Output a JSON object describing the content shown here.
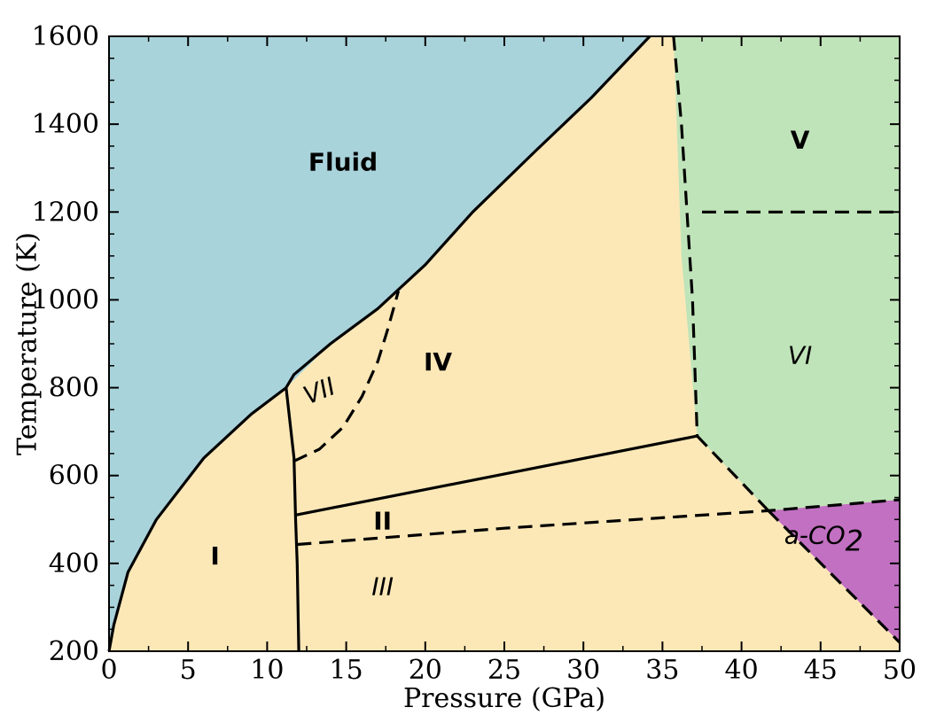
{
  "chart_data": {
    "type": "area",
    "title": "",
    "xlabel": "Pressure (GPa)",
    "ylabel": "Temperature (K)",
    "xlim": [
      0,
      50
    ],
    "ylim": [
      200,
      1600
    ],
    "x_ticks": [
      0,
      5,
      10,
      15,
      20,
      25,
      30,
      35,
      40,
      45,
      50
    ],
    "y_ticks": [
      200,
      400,
      600,
      800,
      1000,
      1200,
      1400,
      1600
    ],
    "x_tick_labels": [
      "0",
      "5",
      "10",
      "15",
      "20",
      "25",
      "30",
      "35",
      "40",
      "45",
      "50"
    ],
    "y_tick_labels": [
      "200",
      "400",
      "600",
      "800",
      "1000",
      "1200",
      "1400",
      "1600"
    ],
    "grid": false,
    "colors": {
      "fluid": "#a9d3db",
      "solid": "#fce8b7",
      "high_pressure": "#c0e4b9",
      "amorphous": "#c270c2",
      "corner": "#a8a8a8"
    },
    "regions": [
      {
        "label": "Fluid",
        "style": "bold",
        "x": 14.8,
        "y": 1315,
        "color_key": "fluid",
        "polygon": [
          [
            0,
            200
          ],
          [
            0.3,
            260
          ],
          [
            1.2,
            380
          ],
          [
            3,
            500
          ],
          [
            6,
            640
          ],
          [
            9,
            740
          ],
          [
            11.2,
            800
          ],
          [
            14,
            900
          ],
          [
            17,
            980
          ],
          [
            20,
            1080
          ],
          [
            23,
            1200
          ],
          [
            27,
            1340
          ],
          [
            30.5,
            1460
          ],
          [
            34.2,
            1600
          ],
          [
            0,
            1600
          ]
        ]
      },
      {
        "label": "V",
        "style": "bold",
        "x": 43.7,
        "y": 1365,
        "color_key": "high_pressure",
        "polygon": [
          [
            35.7,
            1600
          ],
          [
            50,
            1600
          ],
          [
            50,
            545
          ],
          [
            41.7,
            520
          ],
          [
            37.2,
            690
          ],
          [
            36.2,
            1100
          ]
        ]
      },
      {
        "label": "VI",
        "style": "italic",
        "x": 43.7,
        "y": 875,
        "color_key": "high_pressure"
      },
      {
        "label": "IV",
        "style": "bold",
        "x": 20.8,
        "y": 860,
        "color_key": "solid"
      },
      {
        "label": "VII",
        "style": "italic",
        "x": 13.5,
        "y": 795,
        "color_key": "solid"
      },
      {
        "label": "II",
        "style": "bold",
        "x": 17.3,
        "y": 498,
        "color_key": "solid"
      },
      {
        "label": "I",
        "style": "bold",
        "x": 6.7,
        "y": 418,
        "color_key": "solid"
      },
      {
        "label": "III",
        "style": "italic",
        "x": 17.3,
        "y": 348,
        "color_key": "solid"
      },
      {
        "label": "a-CO2",
        "label_main": "a-CO",
        "label_sub": "2",
        "style": "italic",
        "x": 45.2,
        "y": 465,
        "color_key": "amorphous",
        "polygon": [
          [
            41.7,
            520
          ],
          [
            50,
            545
          ],
          [
            50,
            220
          ]
        ]
      }
    ],
    "boundaries": [
      {
        "name": "melting-curve",
        "style": "solid",
        "points": [
          [
            0,
            200
          ],
          [
            0.3,
            260
          ],
          [
            1.2,
            380
          ],
          [
            3,
            500
          ],
          [
            6,
            640
          ],
          [
            9,
            740
          ],
          [
            11.2,
            800
          ],
          [
            11.7,
            830
          ],
          [
            14,
            900
          ],
          [
            17,
            980
          ],
          [
            20,
            1080
          ],
          [
            23,
            1200
          ],
          [
            27,
            1340
          ],
          [
            30.5,
            1460
          ],
          [
            34.2,
            1600
          ]
        ]
      },
      {
        "name": "I-boundary",
        "style": "solid",
        "points": [
          [
            11.2,
            800
          ],
          [
            11.7,
            640
          ],
          [
            11.8,
            500
          ],
          [
            11.9,
            400
          ],
          [
            12,
            200
          ]
        ]
      },
      {
        "name": "IV-II-boundary",
        "style": "solid",
        "points": [
          [
            11.8,
            510
          ],
          [
            37.2,
            690
          ]
        ]
      },
      {
        "name": "VII-boundary",
        "style": "dashed",
        "points": [
          [
            11.7,
            633
          ],
          [
            13.3,
            660
          ],
          [
            14.8,
            710
          ],
          [
            16,
            780
          ],
          [
            17,
            860
          ],
          [
            17.6,
            930
          ],
          [
            18.3,
            1020
          ]
        ]
      },
      {
        "name": "II-III-boundary",
        "style": "dashed",
        "points": [
          [
            11.9,
            443
          ],
          [
            25,
            480
          ],
          [
            41.7,
            520
          ],
          [
            50,
            545
          ]
        ]
      },
      {
        "name": "IV-VI-boundary",
        "style": "dashed",
        "points": [
          [
            35.7,
            1600
          ],
          [
            36.2,
            1400
          ],
          [
            36.9,
            1000
          ],
          [
            37.2,
            690
          ]
        ]
      },
      {
        "name": "V-VI-boundary",
        "style": "dashed",
        "points": [
          [
            37.5,
            1200
          ],
          [
            50,
            1200
          ]
        ]
      },
      {
        "name": "VI-amorphous-boundary",
        "style": "dashed",
        "points": [
          [
            37.2,
            690
          ],
          [
            41.7,
            520
          ]
        ]
      },
      {
        "name": "amorphous-III-boundary",
        "style": "dashed",
        "points": [
          [
            41.7,
            520
          ],
          [
            50,
            220
          ]
        ]
      }
    ]
  }
}
